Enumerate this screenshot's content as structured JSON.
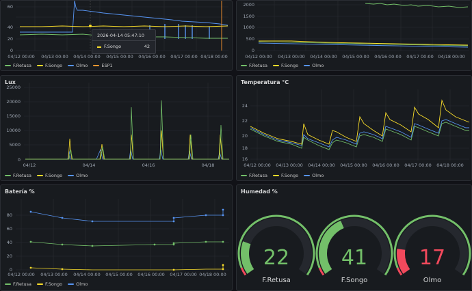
{
  "colors": {
    "green": "#73bf69",
    "yellow": "#fade2a",
    "blue": "#5794f2",
    "orange": "#ff9830",
    "red": "#f2495c"
  },
  "top_left": {
    "legend": [
      "F.Retusa",
      "F.Songo",
      "Olmo",
      "ESP1"
    ],
    "ticks_x": [
      "04/12 00:00",
      "04/13 00:00",
      "04/14 00:00",
      "04/15 00:00",
      "04/16 00:00",
      "04/17 00:00",
      "04/18 00:00"
    ],
    "ticks_y": [
      "0",
      "20",
      "40",
      "60"
    ],
    "tooltip": {
      "time": "2026-04-14 05:47:10",
      "series": "F.Songo",
      "value": "42"
    }
  },
  "top_right": {
    "legend": [
      "F.Retusa",
      "F.Songo",
      "Olmo"
    ],
    "ticks_x": [
      "04/12 00:00",
      "04/13 00:00",
      "04/14 00:00",
      "04/15 00:00",
      "04/16 00:00",
      "04/17 00:00",
      "04/18 00:00"
    ],
    "ticks_y": [
      "0",
      "500",
      "1000",
      "1500",
      "2000"
    ]
  },
  "lux": {
    "title": "Lux",
    "legend": [
      "F.Retusa",
      "F.Songo",
      "Olmo"
    ],
    "ticks_x": [
      "04/12",
      "04/14",
      "04/16",
      "04/18"
    ],
    "ticks_y": [
      "0",
      "5000",
      "10000",
      "15000",
      "20000",
      "25000"
    ]
  },
  "temp": {
    "title": "Temperatura °C",
    "legend": [
      "F.Retusa",
      "F.Songo",
      "Olmo"
    ],
    "ticks_x": [
      "04/12 00:00",
      "04/13 00:00",
      "04/14 00:00",
      "04/15 00:00",
      "04/16 00:00",
      "04/17 00:00",
      "04/18 00:00"
    ],
    "ticks_y": [
      "16",
      "18",
      "20",
      "22",
      "24"
    ]
  },
  "bat": {
    "title": "Batería %",
    "legend": [
      "F.Retusa",
      "F.Songo",
      "Olmo"
    ],
    "ticks_x": [
      "04/12 00:00",
      "04/13 00:00",
      "04/14 00:00",
      "04/15 00:00",
      "04/16 00:00",
      "04/17 00:00",
      "04/18 00:00"
    ],
    "ticks_y": [
      "0",
      "20",
      "40",
      "60",
      "80"
    ]
  },
  "hum": {
    "title": "Humedad %",
    "gauges": [
      {
        "label": "F.Retusa",
        "value": "22",
        "fraction": 0.22
      },
      {
        "label": "F.Songo",
        "value": "41",
        "fraction": 0.41
      },
      {
        "label": "Olmo",
        "value": "17",
        "fraction": 0.17
      }
    ]
  }
}
